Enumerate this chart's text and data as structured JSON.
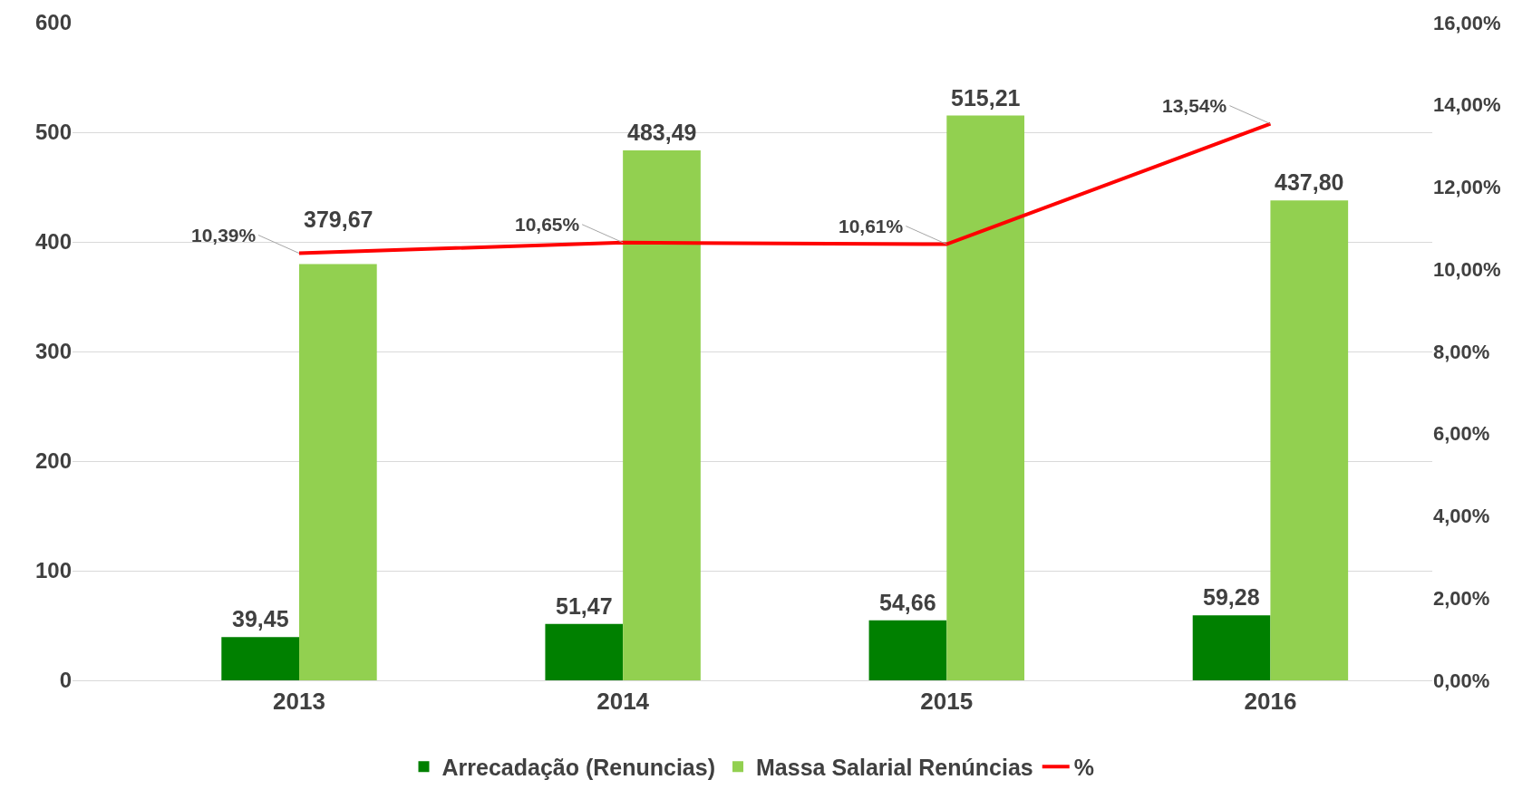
{
  "chart_data": {
    "type": "bar",
    "categories": [
      "2013",
      "2014",
      "2015",
      "2016"
    ],
    "series": [
      {
        "name": "Arrecadação (Renuncias)",
        "color": "#008000",
        "values": [
          39.45,
          51.47,
          54.66,
          59.28
        ],
        "value_labels": [
          "39,45",
          "51,47",
          "54,66",
          "59,28"
        ]
      },
      {
        "name": "Massa Salarial Renúncias",
        "color": "#92d050",
        "values": [
          379.67,
          483.49,
          515.21,
          437.8
        ],
        "value_labels": [
          "379,67",
          "483,49",
          "515,21",
          "437,80"
        ]
      },
      {
        "name": "%",
        "type": "line",
        "axis": "y2",
        "color": "#ff0000",
        "values": [
          10.39,
          10.65,
          10.61,
          13.54
        ],
        "value_labels": [
          "10,39%",
          "10,65%",
          "10,61%",
          "13,54%"
        ]
      }
    ],
    "ylim": [
      0,
      600
    ],
    "yticks": [
      0,
      100,
      200,
      300,
      400,
      500,
      600
    ],
    "y2lim": [
      0,
      16
    ],
    "y2ticks": [
      {
        "value": 0,
        "label": "0,00%"
      },
      {
        "value": 2,
        "label": "2,00%"
      },
      {
        "value": 4,
        "label": "4,00%"
      },
      {
        "value": 6,
        "label": "6,00%"
      },
      {
        "value": 8,
        "label": "8,00%"
      },
      {
        "value": 10,
        "label": "10,00%"
      },
      {
        "value": 12,
        "label": "12,00%"
      },
      {
        "value": 14,
        "label": "14,00%"
      },
      {
        "value": 16,
        "label": "16,00%"
      }
    ],
    "grid": "y",
    "legend": "bottom",
    "marker": "none",
    "line_style": "solid"
  }
}
